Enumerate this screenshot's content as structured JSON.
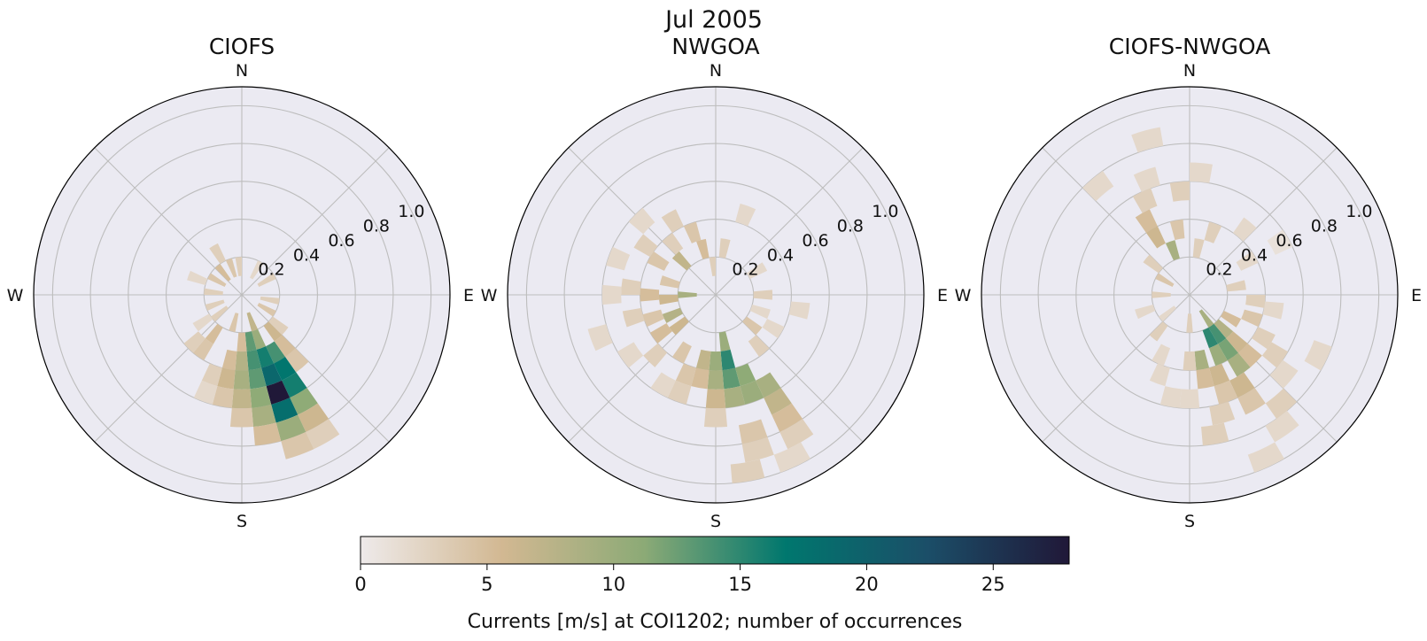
{
  "figure": {
    "title": "Jul 2005"
  },
  "compass": {
    "n": "N",
    "e": "E",
    "s": "S",
    "w": "W"
  },
  "colorbar": {
    "label": "Currents [m/s] at COI1202; number of occurrences",
    "range": [
      0,
      28
    ],
    "ticks": [
      0,
      5,
      10,
      15,
      20,
      25
    ],
    "colormap": [
      "#eeeaea",
      "#d2b892",
      "#8caa76",
      "#00776e",
      "#1b4e68",
      "#201838"
    ]
  },
  "chart_data": [
    {
      "type": "polar-histogram",
      "title": "CIOFS",
      "rlim": [
        0,
        1.1
      ],
      "rticks": [
        0.2,
        0.4,
        0.6,
        0.8,
        1.0
      ],
      "direction_labels": [
        "N",
        "E",
        "S",
        "W"
      ],
      "bins": [
        {
          "dir": 150,
          "speed": 0.35,
          "count": 14
        },
        {
          "dir": 150,
          "speed": 0.45,
          "count": 17
        },
        {
          "dir": 150,
          "speed": 0.55,
          "count": 16
        },
        {
          "dir": 150,
          "speed": 0.65,
          "count": 11
        },
        {
          "dir": 150,
          "speed": 0.75,
          "count": 6
        },
        {
          "dir": 150,
          "speed": 0.85,
          "count": 3
        },
        {
          "dir": 160,
          "speed": 0.25,
          "count": 10
        },
        {
          "dir": 160,
          "speed": 0.35,
          "count": 16
        },
        {
          "dir": 160,
          "speed": 0.45,
          "count": 19
        },
        {
          "dir": 160,
          "speed": 0.55,
          "count": 28
        },
        {
          "dir": 160,
          "speed": 0.65,
          "count": 18
        },
        {
          "dir": 160,
          "speed": 0.75,
          "count": 10
        },
        {
          "dir": 160,
          "speed": 0.85,
          "count": 4
        },
        {
          "dir": 170,
          "speed": 0.25,
          "count": 13
        },
        {
          "dir": 170,
          "speed": 0.35,
          "count": 14
        },
        {
          "dir": 170,
          "speed": 0.45,
          "count": 13
        },
        {
          "dir": 170,
          "speed": 0.55,
          "count": 11
        },
        {
          "dir": 170,
          "speed": 0.65,
          "count": 9
        },
        {
          "dir": 170,
          "speed": 0.75,
          "count": 5
        },
        {
          "dir": 180,
          "speed": 0.25,
          "count": 5
        },
        {
          "dir": 180,
          "speed": 0.35,
          "count": 8
        },
        {
          "dir": 180,
          "speed": 0.45,
          "count": 9
        },
        {
          "dir": 180,
          "speed": 0.55,
          "count": 7
        },
        {
          "dir": 180,
          "speed": 0.65,
          "count": 4
        },
        {
          "dir": 190,
          "speed": 0.35,
          "count": 5
        },
        {
          "dir": 190,
          "speed": 0.45,
          "count": 6
        },
        {
          "dir": 190,
          "speed": 0.55,
          "count": 4
        },
        {
          "dir": 200,
          "speed": 0.45,
          "count": 3
        },
        {
          "dir": 200,
          "speed": 0.55,
          "count": 2
        },
        {
          "dir": 140,
          "speed": 0.25,
          "count": 6
        },
        {
          "dir": 140,
          "speed": 0.35,
          "count": 5
        },
        {
          "dir": 140,
          "speed": 0.45,
          "count": 4
        },
        {
          "dir": 130,
          "speed": 0.25,
          "count": 3
        },
        {
          "dir": 215,
          "speed": 0.25,
          "count": 5
        },
        {
          "dir": 215,
          "speed": 0.35,
          "count": 4
        },
        {
          "dir": 225,
          "speed": 0.35,
          "count": 3
        },
        {
          "dir": 235,
          "speed": 0.25,
          "count": 2
        },
        {
          "dir": 250,
          "speed": 0.15,
          "count": 3
        },
        {
          "dir": 275,
          "speed": 0.15,
          "count": 3
        },
        {
          "dir": 300,
          "speed": 0.15,
          "count": 4
        },
        {
          "dir": 320,
          "speed": 0.15,
          "count": 5
        },
        {
          "dir": 340,
          "speed": 0.15,
          "count": 4
        },
        {
          "dir": 355,
          "speed": 0.15,
          "count": 3
        },
        {
          "dir": 30,
          "speed": 0.15,
          "count": 2
        },
        {
          "dir": 60,
          "speed": 0.15,
          "count": 3
        },
        {
          "dir": 100,
          "speed": 0.15,
          "count": 3
        },
        {
          "dir": 120,
          "speed": 0.15,
          "count": 4
        },
        {
          "dir": 160,
          "speed": 0.15,
          "count": 7
        },
        {
          "dir": 195,
          "speed": 0.15,
          "count": 4
        },
        {
          "dir": 230,
          "speed": 0.15,
          "count": 3
        },
        {
          "dir": 330,
          "speed": 0.25,
          "count": 3
        },
        {
          "dir": 290,
          "speed": 0.25,
          "count": 2
        }
      ]
    },
    {
      "type": "polar-histogram",
      "title": "NWGOA",
      "rlim": [
        0,
        1.1
      ],
      "rticks": [
        0.2,
        0.4,
        0.6,
        0.8,
        1.0
      ],
      "direction_labels": [
        "N",
        "E",
        "S",
        "W"
      ],
      "bins": [
        {
          "dir": 170,
          "speed": 0.25,
          "count": 10
        },
        {
          "dir": 170,
          "speed": 0.35,
          "count": 15
        },
        {
          "dir": 170,
          "speed": 0.45,
          "count": 13
        },
        {
          "dir": 170,
          "speed": 0.55,
          "count": 9
        },
        {
          "dir": 160,
          "speed": 0.45,
          "count": 11
        },
        {
          "dir": 160,
          "speed": 0.55,
          "count": 10
        },
        {
          "dir": 150,
          "speed": 0.55,
          "count": 9
        },
        {
          "dir": 150,
          "speed": 0.65,
          "count": 7
        },
        {
          "dir": 150,
          "speed": 0.75,
          "count": 5
        },
        {
          "dir": 150,
          "speed": 0.85,
          "count": 3
        },
        {
          "dir": 155,
          "speed": 0.95,
          "count": 2
        },
        {
          "dir": 165,
          "speed": 0.75,
          "count": 4
        },
        {
          "dir": 165,
          "speed": 0.85,
          "count": 3
        },
        {
          "dir": 170,
          "speed": 0.95,
          "count": 3
        },
        {
          "dir": 180,
          "speed": 0.35,
          "count": 10
        },
        {
          "dir": 180,
          "speed": 0.45,
          "count": 9
        },
        {
          "dir": 180,
          "speed": 0.55,
          "count": 6
        },
        {
          "dir": 180,
          "speed": 0.65,
          "count": 3
        },
        {
          "dir": 190,
          "speed": 0.35,
          "count": 7
        },
        {
          "dir": 190,
          "speed": 0.45,
          "count": 5
        },
        {
          "dir": 200,
          "speed": 0.45,
          "count": 4
        },
        {
          "dir": 200,
          "speed": 0.55,
          "count": 3
        },
        {
          "dir": 210,
          "speed": 0.35,
          "count": 4
        },
        {
          "dir": 210,
          "speed": 0.55,
          "count": 2
        },
        {
          "dir": 230,
          "speed": 0.25,
          "count": 6
        },
        {
          "dir": 235,
          "speed": 0.35,
          "count": 5
        },
        {
          "dir": 245,
          "speed": 0.25,
          "count": 8
        },
        {
          "dir": 250,
          "speed": 0.35,
          "count": 4
        },
        {
          "dir": 255,
          "speed": 0.45,
          "count": 3
        },
        {
          "dir": 265,
          "speed": 0.25,
          "count": 6
        },
        {
          "dir": 270,
          "speed": 0.35,
          "count": 5
        },
        {
          "dir": 275,
          "speed": 0.45,
          "count": 3
        },
        {
          "dir": 270,
          "speed": 0.15,
          "count": 9
        },
        {
          "dir": 285,
          "speed": 0.25,
          "count": 4
        },
        {
          "dir": 300,
          "speed": 0.35,
          "count": 4
        },
        {
          "dir": 305,
          "speed": 0.45,
          "count": 3
        },
        {
          "dir": 315,
          "speed": 0.25,
          "count": 7
        },
        {
          "dir": 320,
          "speed": 0.35,
          "count": 3
        },
        {
          "dir": 330,
          "speed": 0.45,
          "count": 3
        },
        {
          "dir": 340,
          "speed": 0.35,
          "count": 4
        },
        {
          "dir": 345,
          "speed": 0.25,
          "count": 5
        },
        {
          "dir": 355,
          "speed": 0.15,
          "count": 3
        },
        {
          "dir": 10,
          "speed": 0.25,
          "count": 3
        },
        {
          "dir": 20,
          "speed": 0.45,
          "count": 2
        },
        {
          "dir": 60,
          "speed": 0.25,
          "count": 2
        },
        {
          "dir": 90,
          "speed": 0.25,
          "count": 3
        },
        {
          "dir": 110,
          "speed": 0.25,
          "count": 2
        },
        {
          "dir": 120,
          "speed": 0.35,
          "count": 2
        },
        {
          "dir": 130,
          "speed": 0.25,
          "count": 4
        },
        {
          "dir": 140,
          "speed": 0.35,
          "count": 3
        },
        {
          "dir": 225,
          "speed": 0.45,
          "count": 3
        },
        {
          "dir": 235,
          "speed": 0.55,
          "count": 2
        },
        {
          "dir": 250,
          "speed": 0.65,
          "count": 2
        },
        {
          "dir": 270,
          "speed": 0.55,
          "count": 2
        },
        {
          "dir": 290,
          "speed": 0.55,
          "count": 2
        },
        {
          "dir": 315,
          "speed": 0.55,
          "count": 2
        },
        {
          "dir": 100,
          "speed": 0.45,
          "count": 2
        }
      ]
    },
    {
      "type": "polar-histogram",
      "title": "CIOFS-NWGOA",
      "rlim": [
        0,
        1.1
      ],
      "rticks": [
        0.2,
        0.4,
        0.6,
        0.8,
        1.0
      ],
      "direction_labels": [
        "N",
        "E",
        "S",
        "W"
      ],
      "bins": [
        {
          "dir": 145,
          "speed": 0.15,
          "count": 9
        },
        {
          "dir": 145,
          "speed": 0.25,
          "count": 14
        },
        {
          "dir": 145,
          "speed": 0.35,
          "count": 12
        },
        {
          "dir": 145,
          "speed": 0.45,
          "count": 9
        },
        {
          "dir": 150,
          "speed": 0.55,
          "count": 6
        },
        {
          "dir": 150,
          "speed": 0.65,
          "count": 4
        },
        {
          "dir": 135,
          "speed": 0.25,
          "count": 8
        },
        {
          "dir": 135,
          "speed": 0.35,
          "count": 6
        },
        {
          "dir": 135,
          "speed": 0.45,
          "count": 5
        },
        {
          "dir": 155,
          "speed": 0.25,
          "count": 15
        },
        {
          "dir": 155,
          "speed": 0.35,
          "count": 10
        },
        {
          "dir": 160,
          "speed": 0.45,
          "count": 6
        },
        {
          "dir": 160,
          "speed": 0.55,
          "count": 4
        },
        {
          "dir": 165,
          "speed": 0.65,
          "count": 3
        },
        {
          "dir": 170,
          "speed": 0.35,
          "count": 9
        },
        {
          "dir": 170,
          "speed": 0.45,
          "count": 5
        },
        {
          "dir": 170,
          "speed": 0.75,
          "count": 3
        },
        {
          "dir": 180,
          "speed": 0.35,
          "count": 3
        },
        {
          "dir": 180,
          "speed": 0.55,
          "count": 2
        },
        {
          "dir": 140,
          "speed": 0.75,
          "count": 3
        },
        {
          "dir": 145,
          "speed": 0.85,
          "count": 2
        },
        {
          "dir": 155,
          "speed": 0.95,
          "count": 2
        },
        {
          "dir": 130,
          "speed": 0.65,
          "count": 2
        },
        {
          "dir": 125,
          "speed": 0.55,
          "count": 3
        },
        {
          "dir": 120,
          "speed": 0.45,
          "count": 3
        },
        {
          "dir": 110,
          "speed": 0.35,
          "count": 4
        },
        {
          "dir": 120,
          "speed": 0.25,
          "count": 5
        },
        {
          "dir": 115,
          "speed": 0.75,
          "count": 2
        },
        {
          "dir": 330,
          "speed": 0.35,
          "count": 6
        },
        {
          "dir": 330,
          "speed": 0.45,
          "count": 5
        },
        {
          "dir": 335,
          "speed": 0.55,
          "count": 3
        },
        {
          "dir": 340,
          "speed": 0.25,
          "count": 9
        },
        {
          "dir": 340,
          "speed": 0.65,
          "count": 2
        },
        {
          "dir": 350,
          "speed": 0.35,
          "count": 4
        },
        {
          "dir": 355,
          "speed": 0.55,
          "count": 3
        },
        {
          "dir": 320,
          "speed": 0.75,
          "count": 2
        },
        {
          "dir": 345,
          "speed": 0.85,
          "count": 2
        },
        {
          "dir": 5,
          "speed": 0.65,
          "count": 2
        },
        {
          "dir": 10,
          "speed": 0.25,
          "count": 3
        },
        {
          "dir": 20,
          "speed": 0.35,
          "count": 3
        },
        {
          "dir": 40,
          "speed": 0.45,
          "count": 2
        },
        {
          "dir": 60,
          "speed": 0.35,
          "count": 2
        },
        {
          "dir": 60,
          "speed": 0.55,
          "count": 1
        },
        {
          "dir": 80,
          "speed": 0.25,
          "count": 3
        },
        {
          "dir": 95,
          "speed": 0.35,
          "count": 3
        },
        {
          "dir": 100,
          "speed": 0.45,
          "count": 2
        },
        {
          "dir": 300,
          "speed": 0.15,
          "count": 4
        },
        {
          "dir": 310,
          "speed": 0.25,
          "count": 3
        },
        {
          "dir": 270,
          "speed": 0.15,
          "count": 3
        },
        {
          "dir": 250,
          "speed": 0.25,
          "count": 2
        },
        {
          "dir": 220,
          "speed": 0.25,
          "count": 3
        },
        {
          "dir": 205,
          "speed": 0.35,
          "count": 2
        },
        {
          "dir": 200,
          "speed": 0.45,
          "count": 2
        },
        {
          "dir": 190,
          "speed": 0.55,
          "count": 2
        },
        {
          "dir": 230,
          "speed": 0.15,
          "count": 2
        },
        {
          "dir": 180,
          "speed": 0.15,
          "count": 3
        }
      ]
    }
  ]
}
